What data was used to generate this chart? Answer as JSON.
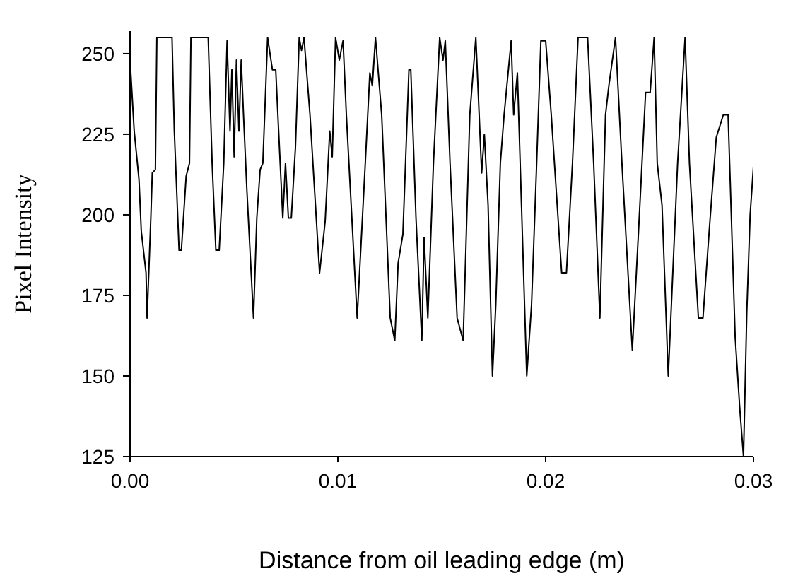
{
  "chart_data": {
    "type": "line",
    "xlabel": "Distance from oil leading edge (m)",
    "ylabel": "Pixel Intensity",
    "xlim": [
      0,
      0.03
    ],
    "xticks": [
      {
        "value": 0,
        "label": "0.00"
      },
      {
        "value": 0.01,
        "label": "0.01"
      },
      {
        "value": 0.02,
        "label": "0.02"
      },
      {
        "value": 0.03,
        "label": "0.03"
      }
    ],
    "ylim": [
      125,
      257
    ],
    "yticks": [
      125,
      150,
      175,
      200,
      225,
      250
    ],
    "grid": false,
    "legend": false,
    "marker": "none",
    "line_style": "solid",
    "series": [
      {
        "color": "#000000",
        "x": [
          0,
          0.0002,
          0.00043,
          0.00054,
          0.00077,
          0.00082,
          0.001,
          0.00107,
          0.00122,
          0.00129,
          0.00202,
          0.00213,
          0.00236,
          0.00247,
          0.0027,
          0.00286,
          0.00293,
          0.00376,
          0.00395,
          0.00413,
          0.00429,
          0.00451,
          0.00467,
          0.00481,
          0.0049,
          0.00501,
          0.00512,
          0.00524,
          0.00535,
          0.00546,
          0.00562,
          0.00594,
          0.0061,
          0.00626,
          0.00639,
          0.00662,
          0.00685,
          0.00701,
          0.00735,
          0.00748,
          0.00762,
          0.00776,
          0.00796,
          0.00814,
          0.00825,
          0.00837,
          0.00866,
          0.00912,
          0.00939,
          0.00961,
          0.00973,
          0.00989,
          0.01007,
          0.01025,
          0.01041,
          0.01093,
          0.01132,
          0.01154,
          0.01166,
          0.01181,
          0.01211,
          0.01252,
          0.01274,
          0.0129,
          0.01313,
          0.01342,
          0.01351,
          0.01376,
          0.01404,
          0.01415,
          0.01433,
          0.0146,
          0.0149,
          0.01506,
          0.01517,
          0.0154,
          0.01574,
          0.01603,
          0.01635,
          0.01664,
          0.01692,
          0.01705,
          0.01723,
          0.01744,
          0.0176,
          0.01782,
          0.018,
          0.01834,
          0.01846,
          0.01864,
          0.01909,
          0.01932,
          0.01955,
          0.01977,
          0.02,
          0.02027,
          0.02077,
          0.021,
          0.02129,
          0.02156,
          0.02202,
          0.02231,
          0.02261,
          0.02288,
          0.02304,
          0.02336,
          0.02367,
          0.02417,
          0.02447,
          0.02481,
          0.02503,
          0.02522,
          0.02537,
          0.0256,
          0.0259,
          0.02635,
          0.02671,
          0.02692,
          0.02735,
          0.02757,
          0.02787,
          0.02821,
          0.02855,
          0.02878,
          0.02912,
          0.02934,
          0.02952,
          0.02968,
          0.02984,
          0.03
        ],
        "values": [
          248,
          226,
          211,
          195,
          182,
          168,
          199,
          213,
          214,
          255,
          255,
          226,
          189,
          189,
          212,
          216,
          255,
          255,
          216,
          189,
          189,
          216,
          254,
          226,
          245,
          218,
          248,
          226,
          248,
          231,
          208,
          168,
          199,
          214,
          216,
          255,
          245,
          245,
          199,
          216,
          199,
          199,
          221,
          255,
          251,
          255,
          231,
          182,
          198,
          226,
          218,
          255,
          248,
          254,
          231,
          168,
          216,
          244,
          240,
          255,
          231,
          168,
          161,
          185,
          194,
          245,
          245,
          199,
          161,
          193,
          168,
          216,
          255,
          248,
          254,
          216,
          168,
          161,
          231,
          255,
          213,
          225,
          203,
          150,
          172,
          216,
          231,
          254,
          231,
          244,
          150,
          172,
          213,
          254,
          254,
          231,
          182,
          182,
          216,
          255,
          255,
          216,
          168,
          231,
          240,
          255,
          216,
          158,
          195,
          238,
          238,
          255,
          216,
          203,
          150,
          216,
          255,
          216,
          168,
          168,
          195,
          224,
          231,
          231,
          162,
          140,
          125,
          170,
          200,
          215
        ]
      }
    ]
  }
}
